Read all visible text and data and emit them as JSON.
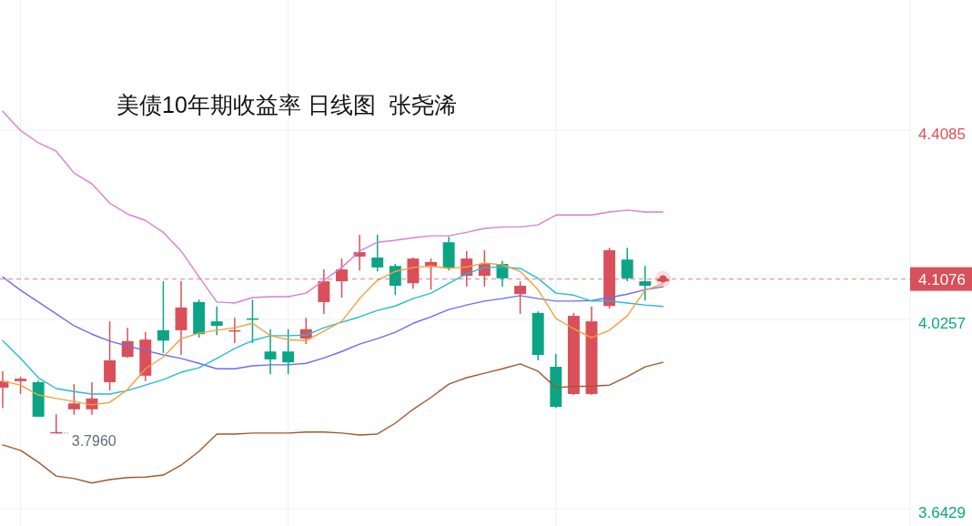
{
  "chart_data": {
    "type": "candlestick",
    "title": "美债10年期收益率 日线图  张尧浠",
    "categories": [
      null,
      null,
      null,
      null,
      null,
      null,
      null,
      null,
      null,
      null,
      null,
      null,
      null,
      null,
      null,
      null,
      null,
      null,
      null,
      null,
      null,
      null,
      null,
      null,
      null,
      null,
      null,
      null,
      null,
      null,
      null,
      null,
      null,
      null,
      null,
      null,
      null,
      null
    ],
    "ohlc": [
      [
        3.888,
        3.921,
        3.847,
        3.901
      ],
      [
        3.901,
        3.91,
        3.875,
        3.906
      ],
      [
        3.899,
        3.902,
        3.829,
        3.829
      ],
      [
        3.797,
        3.834,
        3.796,
        3.798
      ],
      [
        3.844,
        3.895,
        3.833,
        3.856
      ],
      [
        3.844,
        3.899,
        3.833,
        3.866
      ],
      [
        3.899,
        4.022,
        3.882,
        3.943
      ],
      [
        3.95,
        4.009,
        3.948,
        3.982
      ],
      [
        3.912,
        4.0,
        3.901,
        3.985
      ],
      [
        4.004,
        4.103,
        3.958,
        3.983
      ],
      [
        4.004,
        4.103,
        3.954,
        4.05
      ],
      [
        4.061,
        4.066,
        3.989,
        3.996
      ],
      [
        4.022,
        4.052,
        3.994,
        4.013
      ],
      [
        4.003,
        4.029,
        3.978,
        4.004
      ],
      [
        4.028,
        4.066,
        3.978,
        4.027
      ],
      [
        3.961,
        4.006,
        3.915,
        3.945
      ],
      [
        3.961,
        4.006,
        3.915,
        3.939
      ],
      [
        3.987,
        4.029,
        3.976,
        4.006
      ],
      [
        4.061,
        4.127,
        4.037,
        4.103
      ],
      [
        4.103,
        4.149,
        4.07,
        4.127
      ],
      [
        4.153,
        4.197,
        4.125,
        4.162
      ],
      [
        4.151,
        4.197,
        4.123,
        4.131
      ],
      [
        4.134,
        4.138,
        4.075,
        4.094
      ],
      [
        4.099,
        4.151,
        4.088,
        4.149
      ],
      [
        4.132,
        4.149,
        4.086,
        4.142
      ],
      [
        4.182,
        4.193,
        4.125,
        4.131
      ],
      [
        4.114,
        4.164,
        4.092,
        4.149
      ],
      [
        4.114,
        4.166,
        4.092,
        4.138
      ],
      [
        4.138,
        4.144,
        4.092,
        4.109
      ],
      [
        4.077,
        4.103,
        4.037,
        4.094
      ],
      [
        4.039,
        4.042,
        3.943,
        3.954
      ],
      [
        3.93,
        3.956,
        3.847,
        3.849
      ],
      [
        3.875,
        4.039,
        3.873,
        4.033
      ],
      [
        3.875,
        4.052,
        3.873,
        4.022
      ],
      [
        4.053,
        4.171,
        4.048,
        4.166
      ],
      [
        4.147,
        4.171,
        4.103,
        4.109
      ],
      [
        4.103,
        4.134,
        4.064,
        4.094
      ],
      [
        4.103,
        4.108,
        4.103,
        4.108
      ]
    ],
    "colors": [
      "#d9505a",
      "#d9505a",
      "#0ba586",
      "#d9505a",
      "#d9505a",
      "#d9505a",
      "#d9505a",
      "#d9505a",
      "#d9505a",
      "#0ba586",
      "#d9505a",
      "#0ba586",
      "#0ba586",
      "#d9505a",
      "#0ba586",
      "#0ba586",
      "#0ba586",
      "#d9505a",
      "#d9505a",
      "#d9505a",
      "#d9505a",
      "#0ba586",
      "#0ba586",
      "#d9505a",
      "#d9505a",
      "#0ba586",
      "#d9505a",
      "#d9505a",
      "#0ba586",
      "#d9505a",
      "#0ba586",
      "#0ba586",
      "#d9505a",
      "#d9505a",
      "#d9505a",
      "#0ba586",
      "#0ba586",
      "#d9505a"
    ],
    "series": [
      {
        "type": "line",
        "color": "#d77fd1",
        "values": [
          4.447,
          4.408,
          4.383,
          4.366,
          4.322,
          4.3,
          4.261,
          4.239,
          4.226,
          4.202,
          4.164,
          4.112,
          4.061,
          4.059,
          4.07,
          4.072,
          4.072,
          4.079,
          4.105,
          4.131,
          4.164,
          4.182,
          4.186,
          4.191,
          4.195,
          4.195,
          4.202,
          4.21,
          4.213,
          4.213,
          4.217,
          4.237,
          4.237,
          4.237,
          4.243,
          4.247,
          4.243,
          4.243
        ]
      },
      {
        "type": "line",
        "color": "#a0582f",
        "values": [
          3.772,
          3.761,
          3.737,
          3.709,
          3.704,
          3.695,
          3.702,
          3.706,
          3.707,
          3.711,
          3.731,
          3.759,
          3.794,
          3.794,
          3.796,
          3.796,
          3.796,
          3.798,
          3.798,
          3.796,
          3.792,
          3.794,
          3.816,
          3.844,
          3.868,
          3.895,
          3.908,
          3.917,
          3.926,
          3.936,
          3.921,
          3.888,
          3.89,
          3.891,
          3.893,
          3.91,
          3.93,
          3.939
        ]
      },
      {
        "type": "line",
        "color": "#6a6ef0",
        "values": [
          4.112,
          4.085,
          4.061,
          4.037,
          4.013,
          3.996,
          3.982,
          3.972,
          3.963,
          3.954,
          3.947,
          3.937,
          3.926,
          3.926,
          3.932,
          3.934,
          3.934,
          3.937,
          3.948,
          3.961,
          3.976,
          3.987,
          4.0,
          4.018,
          4.031,
          4.046,
          4.055,
          4.063,
          4.068,
          4.074,
          4.068,
          4.063,
          4.063,
          4.064,
          4.07,
          4.077,
          4.086,
          4.092
        ]
      },
      {
        "type": "line",
        "color": "#22bcd8",
        "values": [
          3.983,
          3.947,
          3.908,
          3.886,
          3.88,
          3.875,
          3.875,
          3.882,
          3.893,
          3.904,
          3.919,
          3.928,
          3.947,
          3.967,
          3.983,
          3.993,
          3.993,
          3.994,
          4.009,
          4.02,
          4.031,
          4.044,
          4.053,
          4.068,
          4.079,
          4.099,
          4.118,
          4.131,
          4.132,
          4.129,
          4.109,
          4.079,
          4.075,
          4.063,
          4.063,
          4.059,
          4.055,
          4.052
        ]
      },
      {
        "type": "line",
        "color": "#f5a040",
        "values": [
          3.901,
          3.893,
          3.873,
          3.866,
          3.86,
          3.853,
          3.858,
          3.884,
          3.926,
          3.95,
          3.987,
          3.998,
          4.004,
          4.009,
          4.018,
          3.993,
          3.985,
          3.983,
          4.002,
          4.022,
          4.068,
          4.105,
          4.123,
          4.131,
          4.134,
          4.129,
          4.132,
          4.14,
          4.136,
          4.123,
          4.086,
          4.028,
          4.007,
          3.989,
          4.004,
          4.033,
          4.085,
          4.098
        ]
      }
    ],
    "ylim": [
      3.608,
      4.672
    ],
    "yticks": [
      3.6429,
      4.0257,
      4.4085
    ],
    "ref_lines": [
      {
        "axis": "y",
        "value": 4.1076,
        "label": "4.1076",
        "color": "#d9505a",
        "line_style": "dashed"
      }
    ],
    "annotations": [
      "3.7960"
    ],
    "grid": true
  }
}
